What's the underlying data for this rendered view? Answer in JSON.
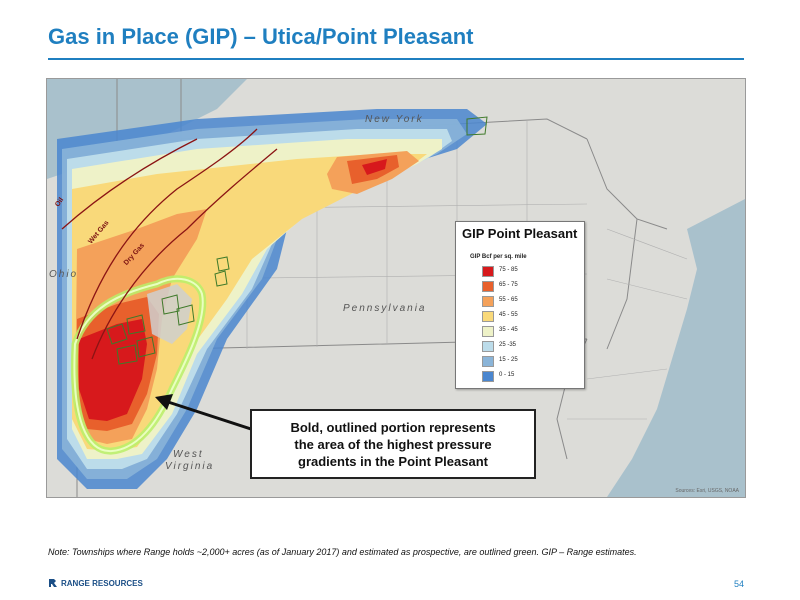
{
  "title": "Gas in Place (GIP) – Utica/Point Pleasant",
  "map": {
    "state_labels": {
      "new_york": "New York",
      "ohio": "Ohio",
      "pennsylvania": "Pennsylvania",
      "west": "West",
      "virginia": "Virginia"
    },
    "line_labels": {
      "oil": "Oil",
      "wet_gas": "Wet Gas",
      "dry_gas": "Dry Gas"
    },
    "attribution": "Sources: Esri, USGS, NOAA"
  },
  "legend": {
    "title": "GIP Point Pleasant",
    "subtitle": "GIP Bcf per sq. mile",
    "items": [
      {
        "label": "75 - 85",
        "color": "#d7191c"
      },
      {
        "label": "65 - 75",
        "color": "#e8602c"
      },
      {
        "label": "55 - 65",
        "color": "#f4a15a"
      },
      {
        "label": "45 - 55",
        "color": "#f9d97a"
      },
      {
        "label": "35 - 45",
        "color": "#eef2c8"
      },
      {
        "label": "25 -35",
        "color": "#bcdcea"
      },
      {
        "label": "15 - 25",
        "color": "#8ab4d8"
      },
      {
        "label": "0 - 15",
        "color": "#4a86cf"
      }
    ]
  },
  "callout": {
    "line1": "Bold, outlined portion represents",
    "line2": "the area of the highest pressure",
    "line3": "gradients in the Point Pleasant"
  },
  "note": "Note: Townships where Range holds ~2,000+ acres (as of January 2017) and estimated as prospective, are outlined green.  GIP – Range estimates.",
  "footer": {
    "logo_text": "RANGE RESOURCES",
    "page_number": "54"
  },
  "colors": {
    "title_blue": "#1f7fc0",
    "highlight_green": "#b9f06a",
    "water": "#a9c1cc"
  }
}
